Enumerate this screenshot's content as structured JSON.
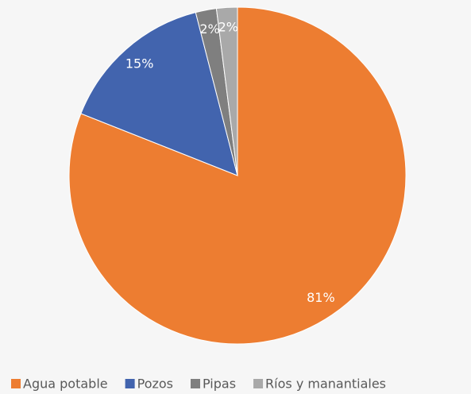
{
  "chart_data": {
    "type": "pie",
    "categories": [
      "Agua potable",
      "Pozos",
      "Pipas",
      "Ríos y manantiales"
    ],
    "values": [
      81,
      15,
      2,
      2
    ],
    "value_labels": [
      "81%",
      "15%",
      "2%",
      "2%"
    ],
    "colors": [
      "#ED7D31",
      "#4264AE",
      "#7F7F7F",
      "#A9A9A9"
    ],
    "legend": "bottom"
  }
}
